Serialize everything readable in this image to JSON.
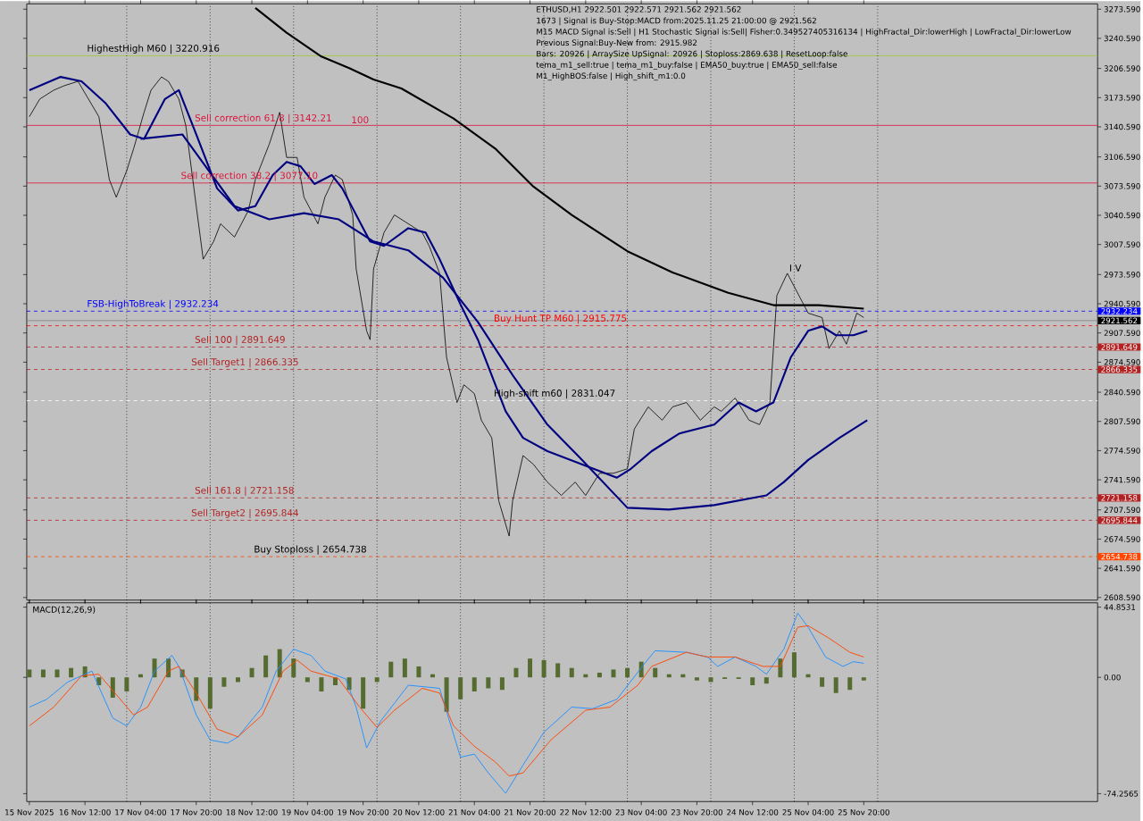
{
  "chart_data": [
    {
      "type": "line",
      "xlim": [
        "2025-11-15T19:15",
        "2025-11-28T15:15"
      ],
      "ylim": [
        2605.6,
        3279.6
      ],
      "xticks": [
        {
          "value": "2025-11-15T20:00",
          "label": null
        },
        {
          "value": "2025-11-16T12:00",
          "label": null
        },
        {
          "value": "2025-11-17T04:00",
          "label": null
        },
        {
          "value": "2025-11-17T20:00",
          "label": null
        },
        {
          "value": "2025-11-18T12:00",
          "label": null
        },
        {
          "value": "2025-11-19T04:00",
          "label": null
        },
        {
          "value": "2025-11-19T20:00",
          "label": null
        },
        {
          "value": "2025-11-20T12:00",
          "label": null
        },
        {
          "value": "2025-11-21T04:00",
          "label": null
        },
        {
          "value": "2025-11-21T20:00",
          "label": null
        },
        {
          "value": "2025-11-22T12:00",
          "label": null
        },
        {
          "value": "2025-11-23T04:00",
          "label": null
        },
        {
          "value": "2025-11-23T20:00",
          "label": null
        },
        {
          "value": "2025-11-24T12:00",
          "label": null
        },
        {
          "value": "2025-11-25T04:00",
          "label": null
        },
        {
          "value": "2025-11-25T20:00",
          "label": null
        }
      ],
      "yticks": [
        {
          "value": 3273.59,
          "label": "3273.590"
        },
        {
          "value": 3240.59,
          "label": "3240.590"
        },
        {
          "value": 3206.59,
          "label": "3206.590"
        },
        {
          "value": 3173.59,
          "label": "3173.590"
        },
        {
          "value": 3140.59,
          "label": "3140.590"
        },
        {
          "value": 3106.59,
          "label": "3106.590"
        },
        {
          "value": 3073.59,
          "label": "3073.590"
        },
        {
          "value": 3040.59,
          "label": "3040.590"
        },
        {
          "value": 3007.59,
          "label": "3007.590"
        },
        {
          "value": 2973.59,
          "label": "2973.590"
        },
        {
          "value": 2940.59,
          "label": "2940.590"
        },
        {
          "value": 2907.59,
          "label": "2907.590"
        },
        {
          "value": 2874.59,
          "label": "2874.590"
        },
        {
          "value": 2840.59,
          "label": "2840.590"
        },
        {
          "value": 2807.59,
          "label": "2807.590"
        },
        {
          "value": 2774.59,
          "label": "2774.590"
        },
        {
          "value": 2741.59,
          "label": "2741.590"
        },
        {
          "value": 2707.59,
          "label": "2707.590"
        },
        {
          "value": 2674.59,
          "label": "2674.590"
        },
        {
          "value": 2641.59,
          "label": "2641.590"
        },
        {
          "value": 2608.59,
          "label": "2608.590"
        }
      ],
      "tick_labels": "y",
      "series": [
        {
          "color": "#000000",
          "x": [
            "2025-11-15T20:00",
            "2025-11-15T23:00",
            "2025-11-16T03:00",
            "2025-11-16T06:00",
            "2025-11-16T10:00",
            "2025-11-16T13:00",
            "2025-11-16T16:00",
            "2025-11-16T19:00",
            "2025-11-16T21:00",
            "2025-11-17T00:00",
            "2025-11-17T02:00",
            "2025-11-17T05:00",
            "2025-11-17T07:00",
            "2025-11-17T10:00",
            "2025-11-17T12:00",
            "2025-11-17T15:00",
            "2025-11-17T17:00",
            "2025-11-17T20:00",
            "2025-11-17T22:00",
            "2025-11-18T01:00",
            "2025-11-18T03:00",
            "2025-11-18T07:00",
            "2025-11-18T11:00",
            "2025-11-18T13:00",
            "2025-11-18T17:00",
            "2025-11-18T20:00",
            "2025-11-18T22:00",
            "2025-11-19T01:00",
            "2025-11-19T03:00",
            "2025-11-19T07:00",
            "2025-11-19T09:00",
            "2025-11-19T12:00",
            "2025-11-19T14:00",
            "2025-11-19T17:00",
            "2025-11-19T18:00",
            "2025-11-19T21:00",
            "2025-11-19T22:00",
            "2025-11-19T23:00",
            "2025-11-20T02:00",
            "2025-11-20T05:00",
            "2025-11-20T09:00",
            "2025-11-20T13:00",
            "2025-11-20T15:00",
            "2025-11-20T18:00",
            "2025-11-20T20:00",
            "2025-11-20T23:00",
            "2025-11-21T01:00",
            "2025-11-21T04:00",
            "2025-11-21T06:00",
            "2025-11-21T09:00",
            "2025-11-21T11:00",
            "2025-11-21T14:00",
            "2025-11-21T15:00",
            "2025-11-21T18:00",
            "2025-11-21T21:00",
            "2025-11-22T01:00",
            "2025-11-22T05:00",
            "2025-11-22T09:00",
            "2025-11-22T12:00",
            "2025-11-22T16:00",
            "2025-11-22T20:00",
            "2025-11-23T00:00",
            "2025-11-23T02:00",
            "2025-11-23T06:00",
            "2025-11-23T10:00",
            "2025-11-23T13:00",
            "2025-11-23T17:00",
            "2025-11-23T21:00",
            "2025-11-24T01:00",
            "2025-11-24T03:00",
            "2025-11-24T07:00",
            "2025-11-24T11:00",
            "2025-11-24T14:00",
            "2025-11-24T17:00",
            "2025-11-24T19:00",
            "2025-11-24T22:00",
            "2025-11-25T00:00",
            "2025-11-25T04:00",
            "2025-11-25T08:00",
            "2025-11-25T10:00",
            "2025-11-25T13:00",
            "2025-11-25T15:00",
            "2025-11-25T18:00",
            "2025-11-25T20:00"
          ],
          "values": [
            3152,
            3172,
            3182,
            3187,
            3192,
            3172,
            3152,
            3081,
            3061,
            3091,
            3116,
            3157,
            3182,
            3197,
            3192,
            3172,
            3142,
            3051,
            2991,
            3011,
            3031,
            3016,
            3046,
            3081,
            3121,
            3157,
            3106,
            3106,
            3061,
            3031,
            3061,
            3086,
            3081,
            3041,
            2980,
            2910,
            2900,
            2980,
            3021,
            3041,
            3031,
            3021,
            3006,
            2975,
            2880,
            2829,
            2849,
            2839,
            2809,
            2789,
            2718,
            2678,
            2718,
            2769,
            2759,
            2739,
            2724,
            2739,
            2724,
            2749,
            2749,
            2754,
            2799,
            2824,
            2809,
            2824,
            2829,
            2809,
            2824,
            2819,
            2834,
            2809,
            2804,
            2829,
            2950,
            2975,
            2960,
            2930,
            2925,
            2890,
            2910,
            2895,
            2930,
            2925
          ]
        },
        {
          "color": "#000000",
          "x": [
            "2025-11-18T13:00",
            "2025-11-18T22:00",
            "2025-11-19T08:00",
            "2025-11-19T16:00",
            "2025-11-19T23:00",
            "2025-11-20T07:00",
            "2025-11-20T22:00",
            "2025-11-21T10:00",
            "2025-11-21T21:00",
            "2025-11-22T08:00",
            "2025-11-23T00:00",
            "2025-11-23T13:00",
            "2025-11-24T05:00",
            "2025-11-24T18:00",
            "2025-11-25T07:00",
            "2025-11-25T20:00"
          ],
          "values": [
            3275,
            3247,
            3220,
            3207,
            3194,
            3184,
            3150,
            3116,
            3073,
            3041,
            3000,
            2976,
            2953,
            2939,
            2939,
            2935
          ]
        },
        {
          "color": "#000080",
          "x": [
            "2025-11-15T20:00",
            "2025-11-16T05:00",
            "2025-11-16T11:00",
            "2025-11-16T18:00",
            "2025-11-17T01:00",
            "2025-11-17T05:00",
            "2025-11-17T11:00",
            "2025-11-17T15:00",
            "2025-11-17T20:00",
            "2025-11-18T02:00",
            "2025-11-18T08:00",
            "2025-11-18T13:00",
            "2025-11-18T18:00",
            "2025-11-18T22:00",
            "2025-11-19T02:00",
            "2025-11-19T06:00",
            "2025-11-19T11:00",
            "2025-11-19T14:00",
            "2025-11-19T18:00",
            "2025-11-19T22:00",
            "2025-11-20T02:00",
            "2025-11-20T09:00",
            "2025-11-20T14:00",
            "2025-11-20T18:00",
            "2025-11-21T00:00",
            "2025-11-21T05:00",
            "2025-11-21T13:00",
            "2025-11-21T18:00",
            "2025-11-22T01:00",
            "2025-11-22T11:00",
            "2025-11-22T21:00",
            "2025-11-23T01:00",
            "2025-11-23T07:00",
            "2025-11-23T15:00",
            "2025-11-24T01:00",
            "2025-11-24T08:00",
            "2025-11-24T13:00",
            "2025-11-24T18:00",
            "2025-11-24T23:00",
            "2025-11-25T04:00",
            "2025-11-25T08:00",
            "2025-11-25T12:00",
            "2025-11-25T17:00",
            "2025-11-25T21:00"
          ],
          "values": [
            3182,
            3197,
            3192,
            3167,
            3132,
            3127,
            3172,
            3182,
            3132,
            3071,
            3046,
            3051,
            3086,
            3101,
            3096,
            3076,
            3086,
            3071,
            3041,
            3011,
            3006,
            3026,
            3021,
            2991,
            2940,
            2900,
            2819,
            2789,
            2774,
            2759,
            2744,
            2754,
            2774,
            2794,
            2804,
            2829,
            2819,
            2829,
            2880,
            2910,
            2915,
            2905,
            2905,
            2910
          ]
        },
        {
          "color": "#000080",
          "x": [
            "2025-11-17T04:00",
            "2025-11-17T16:00",
            "2025-11-18T07:00",
            "2025-11-18T17:00",
            "2025-11-19T03:00",
            "2025-11-19T13:00",
            "2025-11-19T23:00",
            "2025-11-20T09:00",
            "2025-11-20T19:00",
            "2025-11-21T05:00",
            "2025-11-21T15:00",
            "2025-11-22T01:00",
            "2025-11-22T11:00",
            "2025-11-23T00:00",
            "2025-11-23T12:00",
            "2025-11-24T01:00",
            "2025-11-24T16:00",
            "2025-11-24T21:00",
            "2025-11-25T04:00",
            "2025-11-25T13:00",
            "2025-11-25T21:00"
          ],
          "values": [
            3127,
            3132,
            3051,
            3036,
            3043,
            3036,
            3011,
            3001,
            2970,
            2920,
            2860,
            2804,
            2764,
            2710,
            2708,
            2713,
            2724,
            2739,
            2764,
            2789,
            2809
          ]
        }
      ],
      "ref_lines": [
        {
          "axis": "y",
          "value": 3220.916,
          "color": "#9acd32",
          "line_style": "solid"
        },
        {
          "axis": "y",
          "value": 3142.21,
          "color": "#dc143c",
          "line_style": "solid"
        },
        {
          "axis": "y",
          "value": 3077.1,
          "color": "#dc143c",
          "line_style": "solid"
        },
        {
          "axis": "y",
          "value": 2932.234,
          "color": "#0000ff",
          "line_style": "dashed",
          "label": "2932.234"
        },
        {
          "axis": "y",
          "value": 2921.562,
          "color": "#808080",
          "line_style": "solid",
          "label": "2921.562"
        },
        {
          "axis": "y",
          "value": 2915.775,
          "color": "#ff0000",
          "line_style": "dashed"
        },
        {
          "axis": "y",
          "value": 2891.649,
          "color": "#b22222",
          "line_style": "dashed",
          "label": "2891.649"
        },
        {
          "axis": "y",
          "value": 2866.335,
          "color": "#b22222",
          "line_style": "dashed",
          "label": "2866.335"
        },
        {
          "axis": "y",
          "value": 2831.047,
          "color": "#ffffff",
          "line_style": "dashed"
        },
        {
          "axis": "y",
          "value": 2721.158,
          "color": "#b22222",
          "line_style": "dashed",
          "label": "2721.158"
        },
        {
          "axis": "y",
          "value": 2695.844,
          "color": "#b22222",
          "line_style": "dashed",
          "label": "2695.844"
        },
        {
          "axis": "y",
          "value": 2654.738,
          "color": "#ff4500",
          "line_style": "dashed",
          "label": "2654.738"
        },
        {
          "axis": "x",
          "value": "2025-11-17T00:00",
          "color": "#000000",
          "line_style": "dotted"
        },
        {
          "axis": "x",
          "value": "2025-11-18T00:00",
          "color": "#000000",
          "line_style": "dotted"
        },
        {
          "axis": "x",
          "value": "2025-11-19T00:00",
          "color": "#000000",
          "line_style": "dotted"
        },
        {
          "axis": "x",
          "value": "2025-11-20T00:00",
          "color": "#000000",
          "line_style": "dotted"
        },
        {
          "axis": "x",
          "value": "2025-11-21T00:00",
          "color": "#000000",
          "line_style": "dotted"
        },
        {
          "axis": "x",
          "value": "2025-11-22T00:00",
          "color": "#000000",
          "line_style": "dotted"
        },
        {
          "axis": "x",
          "value": "2025-11-23T00:00",
          "color": "#000000",
          "line_style": "dotted"
        },
        {
          "axis": "x",
          "value": "2025-11-24T00:00",
          "color": "#000000",
          "line_style": "dotted"
        },
        {
          "axis": "x",
          "value": "2025-11-25T00:00",
          "color": "#000000",
          "line_style": "dotted"
        },
        {
          "axis": "x",
          "value": "2025-11-26T00:00",
          "color": "#000000",
          "line_style": "dotted"
        }
      ],
      "annotations": [
        "ETHUSD,H1  2922.501 2922.571 2921.562 2921.562",
        "1673 | Signal is Buy-Stop:MACD from:2025.11.25 21:00:00 @ 2921.562",
        "M15 MACD Signal is:Sell | H1 Stochastic Signal is:Sell| Fisher:0.349527405316134 | HighFractal_Dir:lowerHigh | LowFractal_Dir:lowerLow",
        "Previous Signal:Buy-New from: 2915.982",
        "Bars: 20926 | ArraySize UpSignal: 20926 | Stoploss:2869.638 | ResetLoop:false",
        "tema_m1_sell:true | tema_m1_buy:false | EMA50_buy:true | EMA50_sell:false",
        "M1_HighBOS:false | High_shift_m1:0.0",
        {
          "text": "HighestHigh   M60 | 3220.916",
          "x": "2025-11-16T12:00",
          "y": 3220.916
        },
        {
          "text": "Sell correction 61.8 | 3142.21",
          "x": "2025-11-17T19:00",
          "y": 3142.21
        },
        {
          "text": "Sell correction 38.2 | 3077.10",
          "x": "2025-11-17T15:00",
          "y": 3077.1
        },
        {
          "text": "100",
          "x": "2025-11-19T16:00",
          "y": 3142.21
        },
        {
          "text": "I V",
          "x": "2025-11-24T22:00",
          "y": 2975
        },
        {
          "text": "FSB-HighToBreak | 2932.234",
          "x": "2025-11-16T12:00",
          "y": 2932.234
        },
        {
          "text": "Buy Hunt TP M60 | 2915.775",
          "x": "2025-11-21T09:00",
          "y": 2915.775
        },
        {
          "text": "Sell 100 | 2891.649",
          "x": "2025-11-17T19:00",
          "y": 2891.649
        },
        {
          "text": "Sell Target1 | 2866.335",
          "x": "2025-11-17T18:00",
          "y": 2866.335
        },
        {
          "text": "High-shift m60 | 2831.047",
          "x": "2025-11-21T09:00",
          "y": 2831.047
        },
        {
          "text": "Sell 161.8 | 2721.158",
          "x": "2025-11-17T19:00",
          "y": 2721.158
        },
        {
          "text": "Sell Target2 | 2695.844",
          "x": "2025-11-17T18:00",
          "y": 2695.844
        },
        {
          "text": "Buy Stoploss | 2654.738",
          "x": "2025-11-18T12:00",
          "y": 2654.738
        }
      ]
    },
    {
      "type": "line",
      "title": "MACD(12,26,9)",
      "xlim": [
        "2025-11-15T19:15",
        "2025-11-28T15:15"
      ],
      "ylim": [
        -79.3,
        47.6
      ],
      "xticks": [
        {
          "value": "2025-11-15T20:00",
          "label": "15 Nov 2025"
        },
        {
          "value": "2025-11-16T12:00",
          "label": "16 Nov 12:00"
        },
        {
          "value": "2025-11-17T04:00",
          "label": "17 Nov 04:00"
        },
        {
          "value": "2025-11-17T20:00",
          "label": "17 Nov 20:00"
        },
        {
          "value": "2025-11-18T12:00",
          "label": "18 Nov 12:00"
        },
        {
          "value": "2025-11-19T04:00",
          "label": "19 Nov 04:00"
        },
        {
          "value": "2025-11-19T20:00",
          "label": "19 Nov 20:00"
        },
        {
          "value": "2025-11-20T12:00",
          "label": "20 Nov 12:00"
        },
        {
          "value": "2025-11-21T04:00",
          "label": "21 Nov 04:00"
        },
        {
          "value": "2025-11-21T20:00",
          "label": "21 Nov 20:00"
        },
        {
          "value": "2025-11-22T12:00",
          "label": "22 Nov 12:00"
        },
        {
          "value": "2025-11-23T04:00",
          "label": "23 Nov 04:00"
        },
        {
          "value": "2025-11-23T20:00",
          "label": "23 Nov 20:00"
        },
        {
          "value": "2025-11-24T12:00",
          "label": "24 Nov 12:00"
        },
        {
          "value": "2025-11-25T04:00",
          "label": "25 Nov 04:00"
        },
        {
          "value": "2025-11-25T20:00",
          "label": "25 Nov 20:00"
        }
      ],
      "yticks": [
        44.8531,
        {
          "value": 0,
          "label": "0.00"
        },
        -74.2565
      ],
      "series": [
        {
          "type": "bar",
          "color": "#556b2f",
          "x": [
            "2025-11-15T20:00",
            "2025-11-16T00:00",
            "2025-11-16T04:00",
            "2025-11-16T08:00",
            "2025-11-16T12:00",
            "2025-11-16T16:00",
            "2025-11-16T20:00",
            "2025-11-17T00:00",
            "2025-11-17T04:00",
            "2025-11-17T08:00",
            "2025-11-17T12:00",
            "2025-11-17T16:00",
            "2025-11-17T20:00",
            "2025-11-18T00:00",
            "2025-11-18T04:00",
            "2025-11-18T08:00",
            "2025-11-18T12:00",
            "2025-11-18T16:00",
            "2025-11-18T20:00",
            "2025-11-19T00:00",
            "2025-11-19T04:00",
            "2025-11-19T08:00",
            "2025-11-19T12:00",
            "2025-11-19T16:00",
            "2025-11-19T20:00",
            "2025-11-20T00:00",
            "2025-11-20T04:00",
            "2025-11-20T08:00",
            "2025-11-20T12:00",
            "2025-11-20T16:00",
            "2025-11-20T20:00",
            "2025-11-21T00:00",
            "2025-11-21T04:00",
            "2025-11-21T08:00",
            "2025-11-21T12:00",
            "2025-11-21T16:00",
            "2025-11-21T20:00",
            "2025-11-22T00:00",
            "2025-11-22T04:00",
            "2025-11-22T08:00",
            "2025-11-22T12:00",
            "2025-11-22T16:00",
            "2025-11-22T20:00",
            "2025-11-23T00:00",
            "2025-11-23T04:00",
            "2025-11-23T08:00",
            "2025-11-23T12:00",
            "2025-11-23T16:00",
            "2025-11-23T20:00",
            "2025-11-24T00:00",
            "2025-11-24T04:00",
            "2025-11-24T08:00",
            "2025-11-24T12:00",
            "2025-11-24T16:00",
            "2025-11-24T20:00",
            "2025-11-25T00:00",
            "2025-11-25T04:00",
            "2025-11-25T08:00",
            "2025-11-25T12:00",
            "2025-11-25T16:00",
            "2025-11-25T20:00"
          ],
          "values": [
            5,
            5,
            5,
            6,
            7,
            -5,
            -13,
            -9,
            2,
            12,
            12,
            5,
            -15,
            -20,
            -6,
            -3,
            6,
            14,
            18,
            12,
            -3,
            -9,
            -5,
            -8,
            -20,
            -3,
            10,
            12,
            7,
            2,
            -22,
            -14,
            -9,
            -7,
            -8,
            6,
            12,
            11,
            9,
            6,
            2,
            3,
            5,
            6,
            10,
            6,
            2,
            2,
            -2,
            -3,
            -1,
            -1,
            -5,
            -4,
            12,
            16,
            2,
            -6,
            -10,
            -8,
            -2
          ]
        },
        {
          "type": "line",
          "color": "#1e90ff",
          "x": [
            "2025-11-15T20:00",
            "2025-11-16T01:00",
            "2025-11-16T07:00",
            "2025-11-16T14:00",
            "2025-11-16T20:00",
            "2025-11-17T00:00",
            "2025-11-17T04:00",
            "2025-11-17T08:00",
            "2025-11-17T13:00",
            "2025-11-17T15:00",
            "2025-11-17T20:00",
            "2025-11-18T00:00",
            "2025-11-18T05:00",
            "2025-11-18T08:00",
            "2025-11-18T15:00",
            "2025-11-18T19:00",
            "2025-11-19T00:00",
            "2025-11-19T05:00",
            "2025-11-19T09:00",
            "2025-11-19T15:00",
            "2025-11-19T18:00",
            "2025-11-19T21:00",
            "2025-11-20T01:00",
            "2025-11-20T09:00",
            "2025-11-20T18:00",
            "2025-11-21T00:00",
            "2025-11-21T04:00",
            "2025-11-21T08:00",
            "2025-11-21T13:00",
            "2025-11-21T18:00",
            "2025-11-22T00:00",
            "2025-11-22T08:00",
            "2025-11-22T14:00",
            "2025-11-22T21:00",
            "2025-11-23T05:00",
            "2025-11-23T08:00",
            "2025-11-23T17:00",
            "2025-11-23T23:00",
            "2025-11-24T02:00",
            "2025-11-24T07:00",
            "2025-11-24T13:00",
            "2025-11-24T16:00",
            "2025-11-24T21:00",
            "2025-11-25T01:00",
            "2025-11-25T04:00",
            "2025-11-25T09:00",
            "2025-11-25T14:00",
            "2025-11-25T17:00",
            "2025-11-25T20:00"
          ],
          "values": [
            -19,
            -14,
            -3,
            4,
            -26,
            -31,
            -19,
            4,
            14,
            7,
            -24,
            -40,
            -42,
            -38,
            -19,
            4,
            18,
            14,
            4,
            -1,
            -19,
            -45,
            -28,
            -5,
            -7,
            -51,
            -49,
            -61,
            -74,
            -56,
            -35,
            -19,
            -20,
            -14,
            9,
            17,
            16,
            13,
            7,
            13,
            7,
            2,
            18,
            41,
            32,
            13,
            7,
            10,
            9
          ]
        },
        {
          "type": "line",
          "color": "#ff4500",
          "x": [
            "2025-11-15T20:00",
            "2025-11-16T03:00",
            "2025-11-16T11:00",
            "2025-11-16T16:00",
            "2025-11-17T02:00",
            "2025-11-17T06:00",
            "2025-11-17T12:00",
            "2025-11-17T15:00",
            "2025-11-17T20:00",
            "2025-11-18T02:00",
            "2025-11-18T08:00",
            "2025-11-18T15:00",
            "2025-11-18T21:00",
            "2025-11-19T01:00",
            "2025-11-19T05:00",
            "2025-11-19T13:00",
            "2025-11-19T19:00",
            "2025-11-20T00:00",
            "2025-11-20T05:00",
            "2025-11-20T13:00",
            "2025-11-20T18:00",
            "2025-11-20T22:00",
            "2025-11-21T04:00",
            "2025-11-21T10:00",
            "2025-11-21T14:00",
            "2025-11-21T18:00",
            "2025-11-22T02:00",
            "2025-11-22T12:00",
            "2025-11-22T19:00",
            "2025-11-23T03:00",
            "2025-11-23T07:00",
            "2025-11-23T17:00",
            "2025-11-23T23:00",
            "2025-11-24T07:00",
            "2025-11-24T15:00",
            "2025-11-24T20:00",
            "2025-11-25T01:00",
            "2025-11-25T04:00",
            "2025-11-25T10:00",
            "2025-11-25T16:00",
            "2025-11-25T20:00"
          ],
          "values": [
            -31,
            -19,
            1,
            2,
            -24,
            -19,
            4,
            7,
            -10,
            -33,
            -38,
            -24,
            4,
            11,
            4,
            -1,
            -19,
            -32,
            -21,
            -7,
            -10,
            -31,
            -44,
            -54,
            -63,
            -61,
            -40,
            -21,
            -19,
            -5,
            7,
            16,
            13,
            13,
            7,
            7,
            32,
            33,
            25,
            16,
            13
          ]
        }
      ],
      "ref_lines": [
        {
          "axis": "x",
          "value": "2025-11-17T00:00",
          "color": "#000000",
          "line_style": "dotted"
        },
        {
          "axis": "x",
          "value": "2025-11-18T00:00",
          "color": "#000000",
          "line_style": "dotted"
        },
        {
          "axis": "x",
          "value": "2025-11-19T00:00",
          "color": "#000000",
          "line_style": "dotted"
        },
        {
          "axis": "x",
          "value": "2025-11-20T00:00",
          "color": "#000000",
          "line_style": "dotted"
        },
        {
          "axis": "x",
          "value": "2025-11-21T00:00",
          "color": "#000000",
          "line_style": "dotted"
        },
        {
          "axis": "x",
          "value": "2025-11-22T00:00",
          "color": "#000000",
          "line_style": "dotted"
        },
        {
          "axis": "x",
          "value": "2025-11-23T00:00",
          "color": "#000000",
          "line_style": "dotted"
        },
        {
          "axis": "x",
          "value": "2025-11-24T00:00",
          "color": "#000000",
          "line_style": "dotted"
        },
        {
          "axis": "x",
          "value": "2025-11-25T00:00",
          "color": "#000000",
          "line_style": "dotted"
        },
        {
          "axis": "x",
          "value": "2025-11-26T00:00",
          "color": "#000000",
          "line_style": "dotted"
        }
      ]
    }
  ]
}
